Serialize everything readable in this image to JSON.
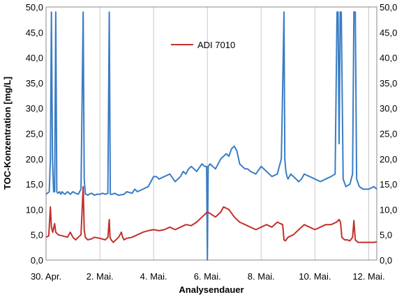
{
  "chart_data": {
    "type": "line",
    "xlabel": "Analysendauer",
    "ylabel": "TOC-Konzentration [mg/L]",
    "ylim": [
      0,
      50
    ],
    "yticks": [
      "0,0",
      "5,0",
      "10,0",
      "15,0",
      "20,0",
      "25,0",
      "30,0",
      "35,0",
      "40,0",
      "45,0",
      "50,0"
    ],
    "y2ticks": [
      "0,0",
      "5,0",
      "10,0",
      "15,0",
      "20,0",
      "25,0",
      "30,0",
      "35,0",
      "40,0",
      "45,0",
      "50,0"
    ],
    "xlim": [
      0,
      12.3
    ],
    "xtick_values": [
      0,
      2,
      4,
      6,
      8,
      10,
      12
    ],
    "xtick_labels": [
      "30. Apr.",
      "2. Mai.",
      "4. Mai.",
      "6. Mai.",
      "8. Mai.",
      "10. Mai.",
      "12. Mai."
    ],
    "grid": "vertical",
    "legend_position": "upper-center",
    "series": [
      {
        "name": "",
        "color": "#3a7cc4",
        "x": [
          0.0,
          0.12,
          0.16,
          0.2,
          0.24,
          0.28,
          0.32,
          0.36,
          0.4,
          0.44,
          0.5,
          0.55,
          0.6,
          0.65,
          0.7,
          0.8,
          0.9,
          1.0,
          1.1,
          1.2,
          1.3,
          1.38,
          1.42,
          1.46,
          1.5,
          1.55,
          1.6,
          1.7,
          1.8,
          1.9,
          2.0,
          2.1,
          2.2,
          2.3,
          2.35,
          2.39,
          2.43,
          2.47,
          2.55,
          2.7,
          2.9,
          3.0,
          3.2,
          3.3,
          3.4,
          3.6,
          3.8,
          3.9,
          4.0,
          4.1,
          4.2,
          4.4,
          4.6,
          4.8,
          5.0,
          5.1,
          5.2,
          5.3,
          5.4,
          5.6,
          5.8,
          5.9,
          5.97,
          6.0,
          6.03,
          6.1,
          6.3,
          6.5,
          6.6,
          6.7,
          6.8,
          6.9,
          7.0,
          7.1,
          7.2,
          7.3,
          7.4,
          7.5,
          7.6,
          7.8,
          8.0,
          8.2,
          8.4,
          8.6,
          8.75,
          8.8,
          8.85,
          8.88,
          8.92,
          8.96,
          9.0,
          9.1,
          9.2,
          9.4,
          9.5,
          9.6,
          9.8,
          10.0,
          10.2,
          10.4,
          10.6,
          10.75,
          10.82,
          10.86,
          10.9,
          10.94,
          10.98,
          11.05,
          11.15,
          11.3,
          11.4,
          11.45,
          11.5,
          11.55,
          11.65,
          11.8,
          12.0,
          12.2,
          12.3
        ],
        "y": [
          13.0,
          13.5,
          20,
          49,
          20,
          13.5,
          13.5,
          49,
          13.5,
          13.2,
          13.5,
          13.0,
          13.5,
          13.2,
          13.0,
          13.5,
          13.0,
          13.5,
          13.2,
          13.0,
          14.0,
          49,
          16,
          13.0,
          13.0,
          12.8,
          13.0,
          13.2,
          12.8,
          13.0,
          13.0,
          13.2,
          13.0,
          13.2,
          49,
          13.0,
          13.0,
          13.0,
          13.2,
          12.8,
          13.0,
          13.5,
          13.2,
          14.0,
          13.5,
          14.0,
          14.5,
          15.5,
          16.5,
          16.5,
          16.0,
          16.5,
          17.0,
          15.5,
          16.5,
          17.5,
          17.0,
          18.0,
          18.5,
          17.5,
          19.0,
          18.5,
          18.5,
          0,
          18.5,
          19.0,
          18.0,
          20.0,
          20.5,
          21.0,
          20.5,
          22.0,
          22.5,
          21.5,
          19.0,
          18.5,
          18.0,
          18.0,
          17.5,
          17.0,
          18.5,
          17.5,
          16.5,
          17.0,
          20.0,
          34,
          49,
          20,
          17.5,
          16.5,
          16.0,
          17.0,
          16.5,
          15.5,
          16.0,
          17.0,
          16.5,
          16.0,
          15.5,
          16.0,
          16.5,
          17.0,
          49,
          49,
          23,
          49,
          49,
          16.0,
          14.5,
          15.0,
          17.0,
          49,
          49,
          16.0,
          14.5,
          14.0,
          14.0,
          14.5,
          14.0
        ]
      },
      {
        "name": "ADI 7010",
        "color": "#c0312b",
        "x": [
          0.0,
          0.1,
          0.16,
          0.2,
          0.25,
          0.32,
          0.36,
          0.45,
          0.6,
          0.8,
          0.9,
          1.0,
          1.1,
          1.2,
          1.3,
          1.38,
          1.42,
          1.46,
          1.55,
          1.7,
          1.8,
          2.0,
          2.2,
          2.3,
          2.35,
          2.38,
          2.42,
          2.5,
          2.7,
          2.8,
          2.85,
          2.9,
          3.0,
          3.2,
          3.4,
          3.6,
          3.8,
          4.0,
          4.2,
          4.4,
          4.6,
          4.8,
          5.0,
          5.2,
          5.4,
          5.6,
          5.8,
          5.9,
          6.0,
          6.1,
          6.3,
          6.5,
          6.6,
          6.8,
          7.0,
          7.2,
          7.4,
          7.6,
          7.8,
          8.0,
          8.2,
          8.4,
          8.6,
          8.8,
          8.85,
          8.9,
          9.0,
          9.2,
          9.4,
          9.6,
          9.8,
          10.0,
          10.2,
          10.4,
          10.6,
          10.8,
          10.9,
          10.95,
          11.0,
          11.1,
          11.2,
          11.3,
          11.4,
          11.45,
          11.5,
          11.6,
          11.8,
          12.0,
          12.2,
          12.3
        ],
        "y": [
          4.5,
          4.8,
          10.5,
          6.5,
          5.5,
          7.2,
          5.5,
          5.0,
          4.8,
          4.5,
          5.5,
          4.5,
          4.0,
          4.5,
          5.0,
          14.5,
          6,
          4.5,
          4.0,
          4.2,
          4.5,
          4.3,
          4.0,
          4.5,
          8.0,
          4.5,
          4.0,
          3.5,
          4.5,
          5.5,
          4.5,
          4.0,
          4.3,
          4.5,
          5.0,
          5.5,
          5.8,
          6.0,
          5.8,
          6.0,
          6.5,
          6.0,
          6.5,
          7.0,
          6.8,
          7.5,
          8.5,
          9.0,
          9.5,
          9.2,
          8.5,
          9.5,
          10.5,
          10.0,
          8.5,
          7.5,
          7.0,
          6.5,
          6.0,
          6.5,
          7.0,
          6.5,
          7.5,
          7.0,
          4.0,
          3.8,
          4.5,
          5.0,
          6.0,
          7.0,
          6.5,
          6.0,
          6.5,
          7.0,
          7.0,
          7.5,
          8.0,
          7.5,
          4.5,
          4.0,
          4.0,
          3.8,
          4.5,
          7.8,
          4.0,
          3.5,
          3.5,
          3.5,
          3.5,
          3.6
        ]
      }
    ]
  }
}
